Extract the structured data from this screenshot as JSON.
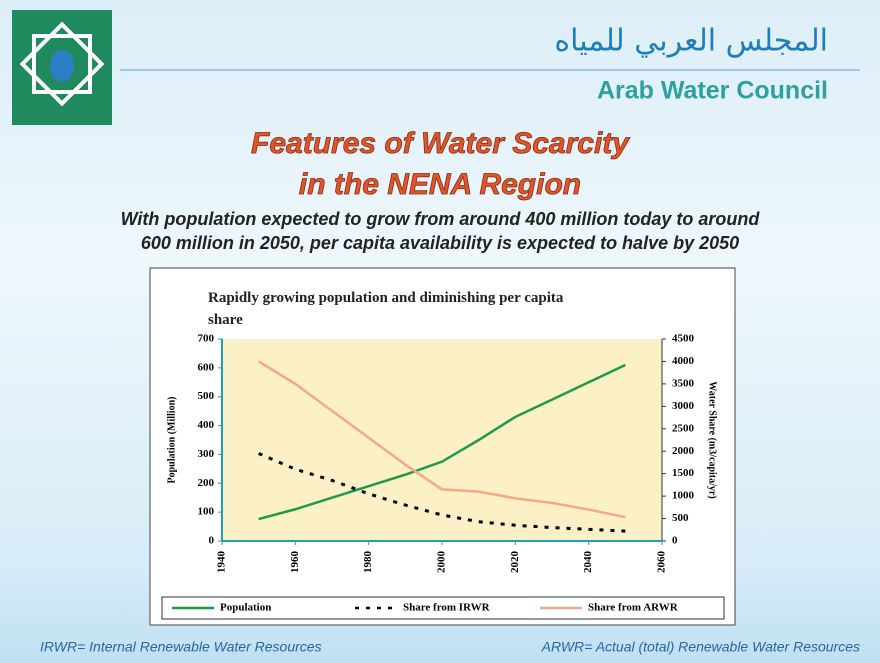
{
  "header": {
    "arabic": "المجلس العربي للمياه",
    "english": "Arab Water Council"
  },
  "slide": {
    "title_lines": [
      "Features of Water Scarcity",
      "in the NENA Region"
    ],
    "subtitle_lines": [
      "With population  expected to grow from around 400 million today to around",
      "600 million  in 2050, per capita availability is expected to halve by 2050"
    ]
  },
  "chart_data": {
    "type": "line",
    "title": "Rapidly growing population and diminishing per capita share",
    "x": [
      1950,
      1960,
      1970,
      1980,
      1990,
      2000,
      2010,
      2020,
      2030,
      2040,
      2050
    ],
    "xlim": [
      1940,
      2060
    ],
    "xticks": [
      1940,
      1960,
      1980,
      2000,
      2020,
      2040,
      2060
    ],
    "ylim": [
      0,
      700
    ],
    "yticks": [
      0,
      100,
      200,
      300,
      400,
      500,
      600,
      700
    ],
    "y2lim": [
      0,
      4500
    ],
    "y2ticks": [
      0,
      500,
      1000,
      1500,
      2000,
      2500,
      3000,
      3500,
      4000,
      4500
    ],
    "ylabel": "Population (Million)",
    "y2label": "Water Share (m3/capita/yr)",
    "legend": "bottom",
    "series": [
      {
        "name": "Population",
        "color": "#1f9a4b",
        "style": "solid",
        "values": [
          76,
          110,
          150,
          190,
          230,
          275,
          350,
          430,
          490,
          550,
          610
        ]
      },
      {
        "name": "Share from IRWR",
        "color": "#000000",
        "style": "dashed",
        "axis": "y2",
        "values": [
          1950,
          1600,
          1350,
          1050,
          800,
          580,
          430,
          350,
          300,
          260,
          220
        ]
      },
      {
        "name": "Share from ARWR",
        "color": "#f5a883",
        "style": "solid",
        "axis": "y2",
        "values": [
          4000,
          3500,
          2900,
          2300,
          1700,
          1150,
          1100,
          950,
          850,
          700,
          530
        ]
      }
    ]
  },
  "footer": {
    "left": "IRWR= Internal Renewable Water Resources",
    "right": "ARWR= Actual (total) Renewable Water Resources"
  }
}
